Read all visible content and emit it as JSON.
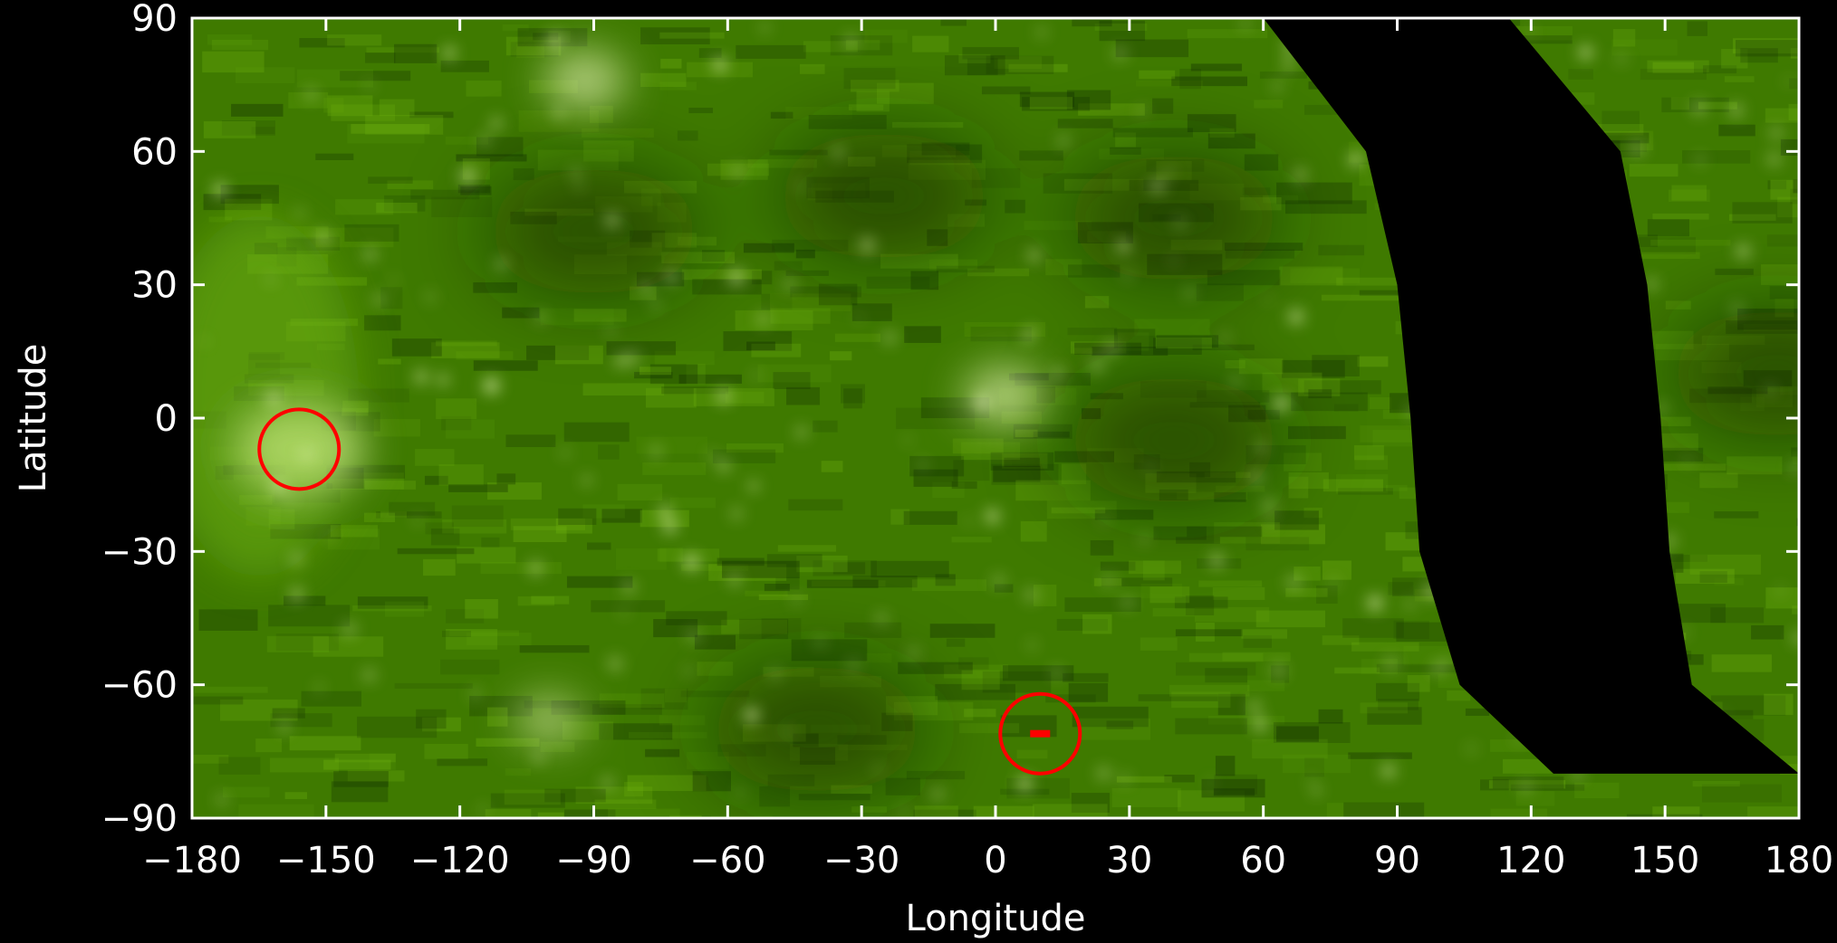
{
  "chart_data": {
    "type": "heatmap",
    "title": "",
    "xlabel": "Longitude",
    "ylabel": "Latitude",
    "xlim": [
      -180,
      180
    ],
    "ylim": [
      -90,
      90
    ],
    "x_ticks": [
      "−180",
      "−150",
      "−120",
      "−90",
      "−60",
      "−30",
      "0",
      "30",
      "60",
      "90",
      "120",
      "150",
      "180"
    ],
    "y_ticks": [
      "90",
      "60",
      "30",
      "0",
      "−30",
      "−60",
      "−90"
    ],
    "x_tick_values": [
      -180,
      -150,
      -120,
      -90,
      -60,
      -30,
      0,
      30,
      60,
      90,
      120,
      150,
      180
    ],
    "y_tick_values": [
      90,
      60,
      30,
      0,
      -30,
      -60,
      -90
    ],
    "colormap": [
      "#0f2a00",
      "#3f7a00",
      "#6fb30e",
      "#e9f7b8"
    ],
    "missing_data_region": {
      "lon_at_lat90": [
        60,
        115
      ],
      "lon_at_lat60": [
        83,
        140
      ],
      "lon_at_lat30": [
        90,
        146
      ],
      "lon_at_lat0": [
        93,
        149
      ],
      "lon_at_latm30": [
        95,
        151
      ],
      "lon_at_latm60": [
        104,
        156
      ],
      "lon_at_latm80": [
        125,
        180
      ]
    },
    "annotations": [
      {
        "type": "circle",
        "lon": -156,
        "lat": -7,
        "color": "#ff0000"
      },
      {
        "type": "circle",
        "lon": 10,
        "lat": -71,
        "color": "#ff0000"
      }
    ],
    "bright_regions": [
      {
        "lon": -156,
        "lat": -7,
        "intensity": 1.0
      },
      {
        "lon": 2,
        "lat": 5,
        "intensity": 0.5
      },
      {
        "lon": -92,
        "lat": 76,
        "intensity": 0.5
      },
      {
        "lon": -100,
        "lat": -68,
        "intensity": 0.35
      }
    ],
    "dark_regions": [
      {
        "lon": -90,
        "lat": 42
      },
      {
        "lon": -25,
        "lat": 50
      },
      {
        "lon": 40,
        "lat": 45
      },
      {
        "lon": 40,
        "lat": -5
      },
      {
        "lon": -40,
        "lat": -70
      },
      {
        "lon": 175,
        "lat": 10
      }
    ]
  }
}
